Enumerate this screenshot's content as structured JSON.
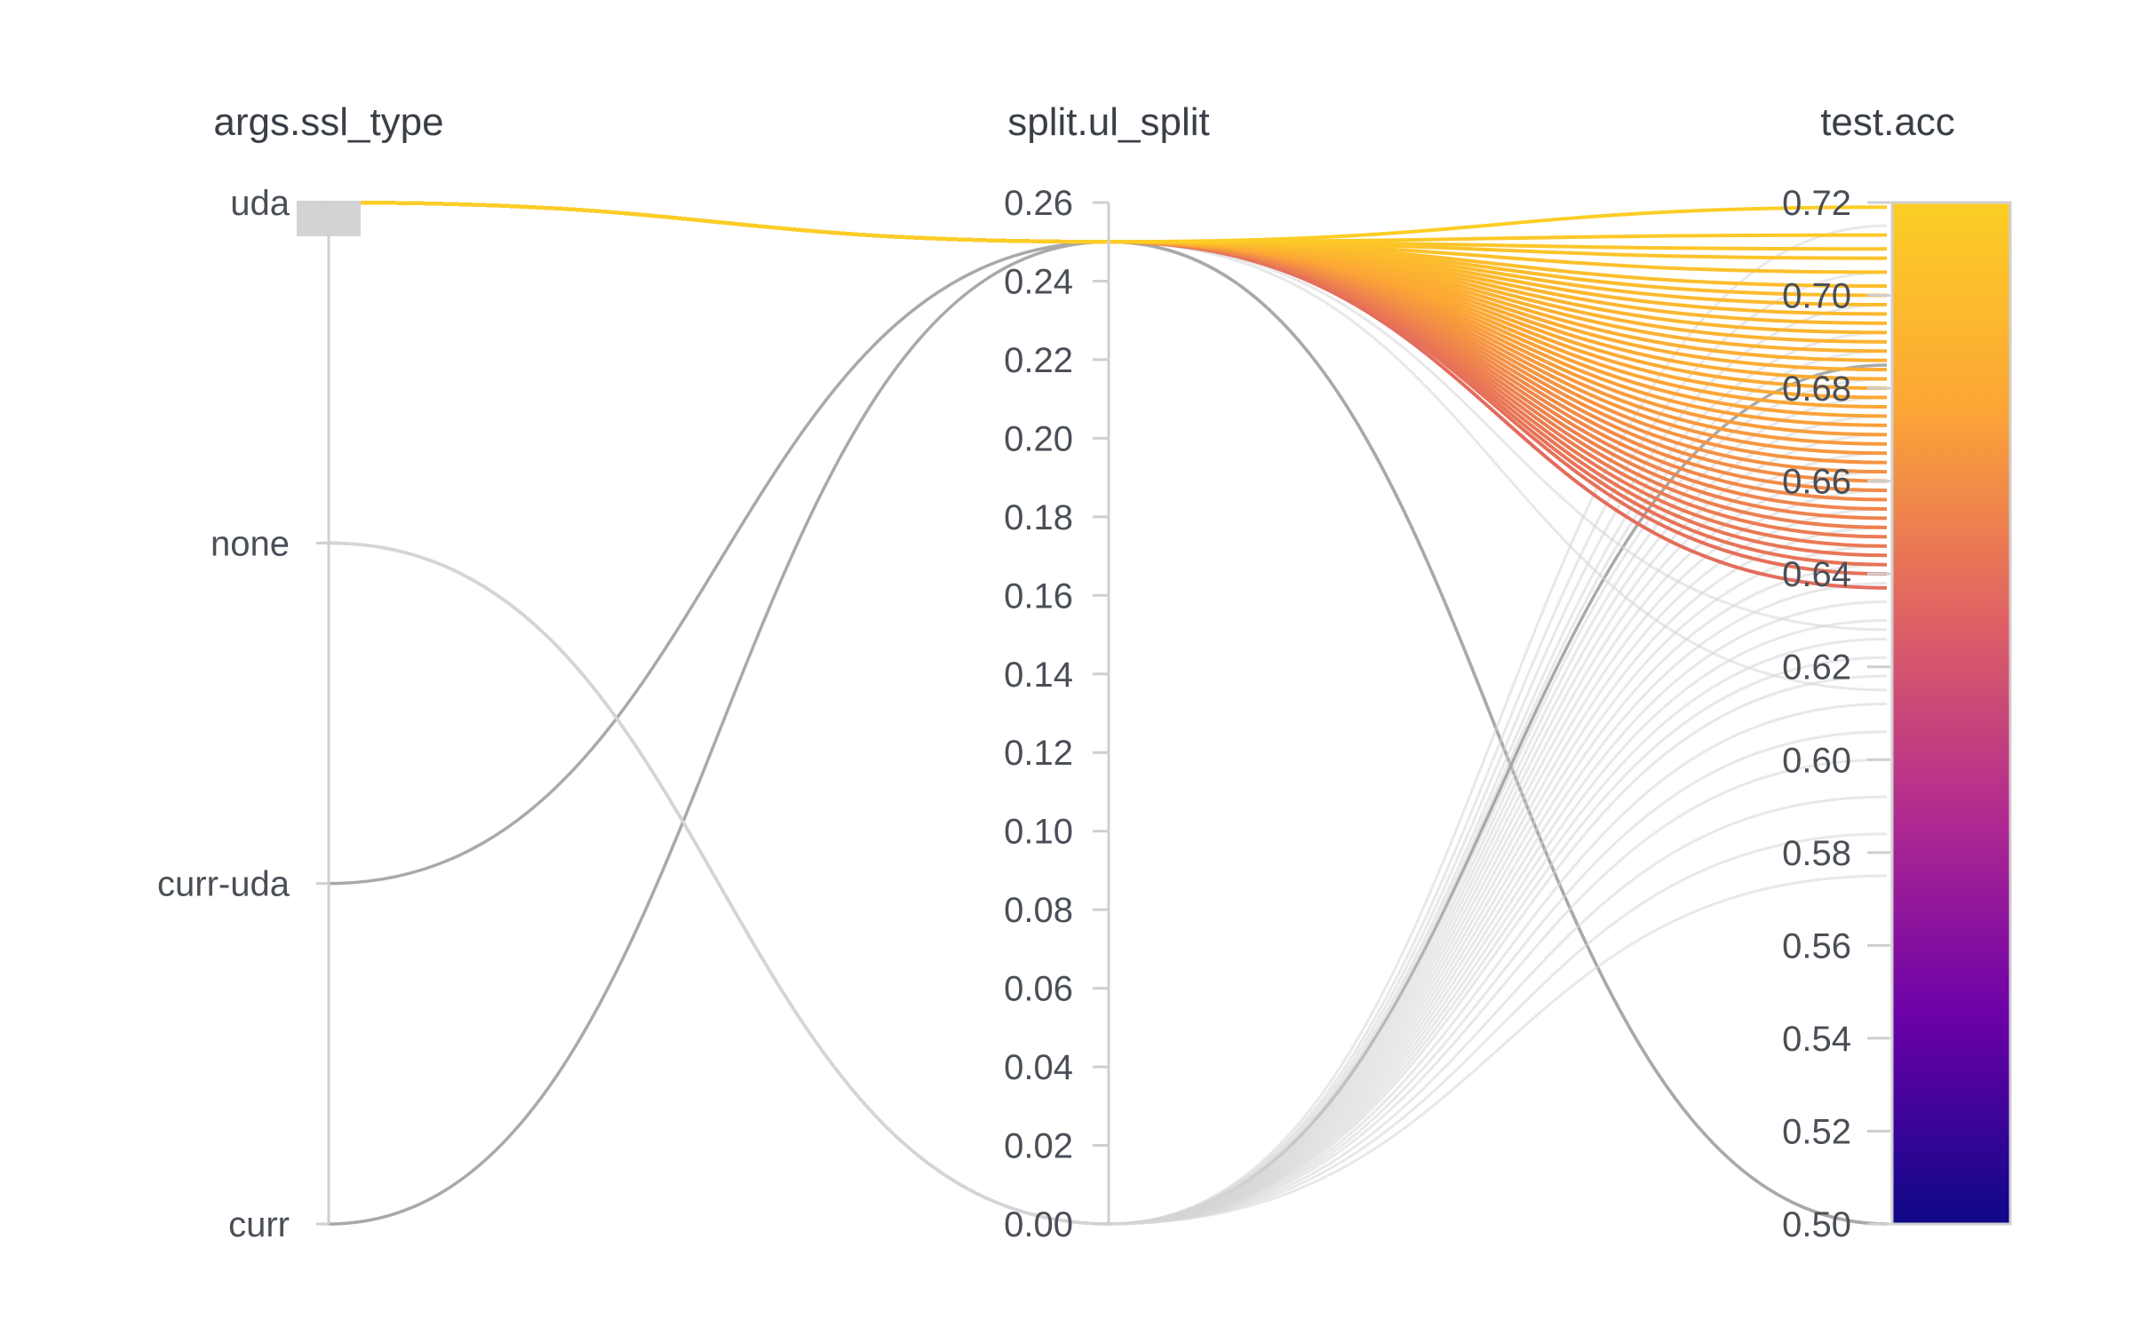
{
  "chart_data": {
    "type": "parallel_coordinates",
    "axes": [
      {
        "name": "args.ssl_type",
        "kind": "categorical",
        "categories": [
          "uda",
          "none",
          "curr-uda",
          "curr"
        ],
        "selected_filter": "uda"
      },
      {
        "name": "split.ul_split",
        "kind": "numeric",
        "range": [
          0,
          0.26
        ],
        "ticks": [
          "0.26",
          "0.24",
          "0.22",
          "0.20",
          "0.18",
          "0.16",
          "0.14",
          "0.12",
          "0.10",
          "0.08",
          "0.06",
          "0.04",
          "0.02",
          "0.00"
        ]
      },
      {
        "name": "test.acc",
        "kind": "numeric",
        "range": [
          0.5,
          0.72
        ],
        "ticks": [
          "0.72",
          "0.70",
          "0.68",
          "0.66",
          "0.64",
          "0.62",
          "0.60",
          "0.58",
          "0.56",
          "0.54",
          "0.52",
          "0.50"
        ],
        "colorscale": [
          "#0d0887",
          "#6a00a8",
          "#b12a90",
          "#e16462",
          "#fca636",
          "#fcce25"
        ]
      }
    ],
    "runs_highlighted": [
      {
        "ssl_type": "uda",
        "ul_split": 0.25,
        "acc": 0.719
      },
      {
        "ssl_type": "uda",
        "ul_split": 0.25,
        "acc": 0.713
      },
      {
        "ssl_type": "uda",
        "ul_split": 0.25,
        "acc": 0.71
      },
      {
        "ssl_type": "uda",
        "ul_split": 0.25,
        "acc": 0.708
      },
      {
        "ssl_type": "uda",
        "ul_split": 0.25,
        "acc": 0.705
      },
      {
        "ssl_type": "uda",
        "ul_split": 0.25,
        "acc": 0.702
      },
      {
        "ssl_type": "uda",
        "ul_split": 0.25,
        "acc": 0.7
      },
      {
        "ssl_type": "uda",
        "ul_split": 0.25,
        "acc": 0.698
      },
      {
        "ssl_type": "uda",
        "ul_split": 0.25,
        "acc": 0.696
      },
      {
        "ssl_type": "uda",
        "ul_split": 0.25,
        "acc": 0.694
      },
      {
        "ssl_type": "uda",
        "ul_split": 0.25,
        "acc": 0.692
      },
      {
        "ssl_type": "uda",
        "ul_split": 0.25,
        "acc": 0.69
      },
      {
        "ssl_type": "uda",
        "ul_split": 0.25,
        "acc": 0.688
      },
      {
        "ssl_type": "uda",
        "ul_split": 0.25,
        "acc": 0.686
      },
      {
        "ssl_type": "uda",
        "ul_split": 0.25,
        "acc": 0.684
      },
      {
        "ssl_type": "uda",
        "ul_split": 0.25,
        "acc": 0.682
      },
      {
        "ssl_type": "uda",
        "ul_split": 0.25,
        "acc": 0.68
      },
      {
        "ssl_type": "uda",
        "ul_split": 0.25,
        "acc": 0.678
      },
      {
        "ssl_type": "uda",
        "ul_split": 0.25,
        "acc": 0.676
      },
      {
        "ssl_type": "uda",
        "ul_split": 0.25,
        "acc": 0.674
      },
      {
        "ssl_type": "uda",
        "ul_split": 0.25,
        "acc": 0.672
      },
      {
        "ssl_type": "uda",
        "ul_split": 0.25,
        "acc": 0.67
      },
      {
        "ssl_type": "uda",
        "ul_split": 0.25,
        "acc": 0.668
      },
      {
        "ssl_type": "uda",
        "ul_split": 0.25,
        "acc": 0.666
      },
      {
        "ssl_type": "uda",
        "ul_split": 0.25,
        "acc": 0.664
      },
      {
        "ssl_type": "uda",
        "ul_split": 0.25,
        "acc": 0.662
      },
      {
        "ssl_type": "uda",
        "ul_split": 0.25,
        "acc": 0.66
      },
      {
        "ssl_type": "uda",
        "ul_split": 0.25,
        "acc": 0.658
      },
      {
        "ssl_type": "uda",
        "ul_split": 0.25,
        "acc": 0.656
      },
      {
        "ssl_type": "uda",
        "ul_split": 0.25,
        "acc": 0.654
      },
      {
        "ssl_type": "uda",
        "ul_split": 0.25,
        "acc": 0.652
      },
      {
        "ssl_type": "uda",
        "ul_split": 0.25,
        "acc": 0.65
      },
      {
        "ssl_type": "uda",
        "ul_split": 0.25,
        "acc": 0.648
      },
      {
        "ssl_type": "uda",
        "ul_split": 0.25,
        "acc": 0.646
      },
      {
        "ssl_type": "uda",
        "ul_split": 0.25,
        "acc": 0.644
      },
      {
        "ssl_type": "uda",
        "ul_split": 0.25,
        "acc": 0.642
      },
      {
        "ssl_type": "uda",
        "ul_split": 0.25,
        "acc": 0.64
      },
      {
        "ssl_type": "uda",
        "ul_split": 0.25,
        "acc": 0.637
      }
    ],
    "runs_muted": [
      {
        "ssl_type": "none",
        "ul_split": 0.0,
        "acc": 0.685
      },
      {
        "ssl_type": "curr-uda",
        "ul_split": 0.25,
        "acc": 0.5
      },
      {
        "ssl_type": "curr",
        "ul_split": 0.25,
        "acc": 0.5
      },
      {
        "ssl_type": "none",
        "ul_split": 0.0,
        "acc": 0.715
      },
      {
        "ssl_type": "none",
        "ul_split": 0.0,
        "acc": 0.705
      },
      {
        "ssl_type": "none",
        "ul_split": 0.0,
        "acc": 0.698
      },
      {
        "ssl_type": "none",
        "ul_split": 0.0,
        "acc": 0.692
      },
      {
        "ssl_type": "none",
        "ul_split": 0.0,
        "acc": 0.688
      },
      {
        "ssl_type": "none",
        "ul_split": 0.0,
        "acc": 0.682
      },
      {
        "ssl_type": "none",
        "ul_split": 0.0,
        "acc": 0.678
      },
      {
        "ssl_type": "none",
        "ul_split": 0.0,
        "acc": 0.674
      },
      {
        "ssl_type": "none",
        "ul_split": 0.0,
        "acc": 0.67
      },
      {
        "ssl_type": "none",
        "ul_split": 0.0,
        "acc": 0.666
      },
      {
        "ssl_type": "none",
        "ul_split": 0.0,
        "acc": 0.662
      },
      {
        "ssl_type": "none",
        "ul_split": 0.0,
        "acc": 0.658
      },
      {
        "ssl_type": "none",
        "ul_split": 0.0,
        "acc": 0.654
      },
      {
        "ssl_type": "none",
        "ul_split": 0.0,
        "acc": 0.65
      },
      {
        "ssl_type": "none",
        "ul_split": 0.0,
        "acc": 0.646
      },
      {
        "ssl_type": "none",
        "ul_split": 0.0,
        "acc": 0.642
      },
      {
        "ssl_type": "none",
        "ul_split": 0.0,
        "acc": 0.638
      },
      {
        "ssl_type": "none",
        "ul_split": 0.0,
        "acc": 0.634
      },
      {
        "ssl_type": "none",
        "ul_split": 0.0,
        "acc": 0.63
      },
      {
        "ssl_type": "none",
        "ul_split": 0.0,
        "acc": 0.626
      },
      {
        "ssl_type": "none",
        "ul_split": 0.0,
        "acc": 0.622
      },
      {
        "ssl_type": "none",
        "ul_split": 0.0,
        "acc": 0.618
      },
      {
        "ssl_type": "none",
        "ul_split": 0.0,
        "acc": 0.612
      },
      {
        "ssl_type": "none",
        "ul_split": 0.0,
        "acc": 0.606
      },
      {
        "ssl_type": "none",
        "ul_split": 0.0,
        "acc": 0.6
      },
      {
        "ssl_type": "none",
        "ul_split": 0.0,
        "acc": 0.592
      },
      {
        "ssl_type": "none",
        "ul_split": 0.0,
        "acc": 0.584
      },
      {
        "ssl_type": "none",
        "ul_split": 0.0,
        "acc": 0.575
      },
      {
        "ssl_type": "uda",
        "ul_split": 0.25,
        "acc": 0.676
      },
      {
        "ssl_type": "uda",
        "ul_split": 0.25,
        "acc": 0.664
      },
      {
        "ssl_type": "uda",
        "ul_split": 0.25,
        "acc": 0.652
      },
      {
        "ssl_type": "uda",
        "ul_split": 0.25,
        "acc": 0.64
      },
      {
        "ssl_type": "uda",
        "ul_split": 0.25,
        "acc": 0.628
      },
      {
        "ssl_type": "uda",
        "ul_split": 0.25,
        "acc": 0.615
      }
    ]
  }
}
